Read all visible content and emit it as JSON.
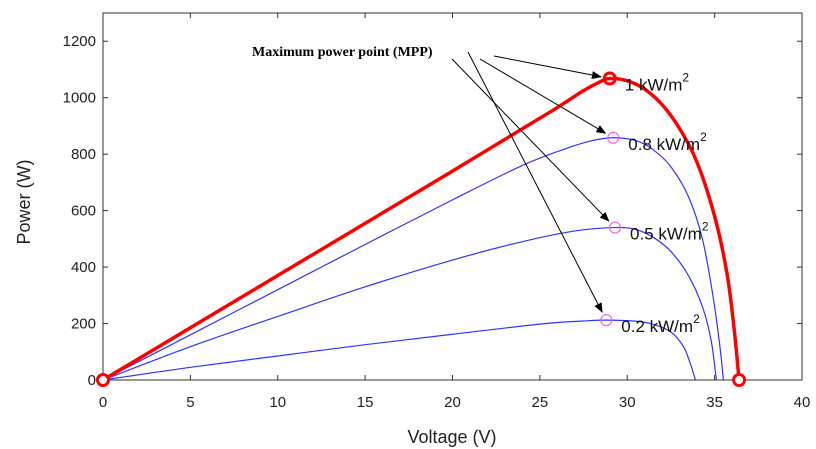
{
  "chart_data": {
    "type": "line",
    "title": "",
    "xlabel": "Voltage (V)",
    "ylabel": "Power (W)",
    "xlim": [
      0,
      40
    ],
    "ylim": [
      0,
      1300
    ],
    "xticks": [
      0,
      5,
      10,
      15,
      20,
      25,
      30,
      35,
      40
    ],
    "yticks": [
      0,
      200,
      400,
      600,
      800,
      1000,
      1200
    ],
    "xtick_labels": [
      "0",
      "5",
      "10",
      "15",
      "20",
      "25",
      "30",
      "35",
      "40"
    ],
    "ytick_labels": [
      "0",
      "200",
      "400",
      "600",
      "800",
      "1000",
      "1200"
    ],
    "grid": false,
    "annotation": {
      "text": "Maximum power point (MPP)"
    },
    "series": [
      {
        "name": "1 kW/m²",
        "label_main": "1 kW/m",
        "label_sup": "2",
        "color": "#ff0000",
        "emphasis": true,
        "mpp": [
          29,
          1068
        ],
        "points": [
          [
            0,
            0
          ],
          [
            5,
            185
          ],
          [
            10,
            370
          ],
          [
            15,
            555
          ],
          [
            20,
            740
          ],
          [
            24,
            890
          ],
          [
            26,
            965
          ],
          [
            27.5,
            1025
          ],
          [
            28.5,
            1058
          ],
          [
            29,
            1068
          ],
          [
            30,
            1060
          ],
          [
            31,
            1030
          ],
          [
            32,
            975
          ],
          [
            33,
            890
          ],
          [
            34,
            770
          ],
          [
            35,
            580
          ],
          [
            35.7,
            380
          ],
          [
            36.1,
            190
          ],
          [
            36.4,
            0
          ]
        ]
      },
      {
        "name": "0.8 kW/m²",
        "label_main": "0.8 kW/m",
        "label_sup": "2",
        "color": "#3333ff",
        "emphasis": false,
        "mpp": [
          29.2,
          858
        ],
        "points": [
          [
            0,
            0
          ],
          [
            5,
            160
          ],
          [
            10,
            320
          ],
          [
            15,
            480
          ],
          [
            20,
            638
          ],
          [
            24,
            760
          ],
          [
            26.5,
            820
          ],
          [
            28,
            848
          ],
          [
            29.2,
            858
          ],
          [
            30.5,
            848
          ],
          [
            31.5,
            815
          ],
          [
            32.5,
            755
          ],
          [
            33.5,
            650
          ],
          [
            34.3,
            500
          ],
          [
            34.9,
            300
          ],
          [
            35.3,
            120
          ],
          [
            35.5,
            0
          ]
        ]
      },
      {
        "name": "0.5 kW/m²",
        "label_main": "0.5 kW/m",
        "label_sup": "2",
        "color": "#3333ff",
        "emphasis": false,
        "mpp": [
          29.3,
          540
        ],
        "points": [
          [
            0,
            0
          ],
          [
            5,
            118
          ],
          [
            10,
            225
          ],
          [
            15,
            330
          ],
          [
            20,
            425
          ],
          [
            24,
            490
          ],
          [
            27,
            528
          ],
          [
            29.3,
            540
          ],
          [
            30.5,
            533
          ],
          [
            31.5,
            505
          ],
          [
            32.5,
            455
          ],
          [
            33.5,
            370
          ],
          [
            34.3,
            260
          ],
          [
            34.8,
            140
          ],
          [
            35.1,
            0
          ]
        ]
      },
      {
        "name": "0.2 kW/m²",
        "label_main": "0.2 kW/m",
        "label_sup": "2",
        "color": "#3333ff",
        "emphasis": false,
        "mpp": [
          28.8,
          212
        ],
        "points": [
          [
            0,
            0
          ],
          [
            5,
            45
          ],
          [
            10,
            85
          ],
          [
            15,
            125
          ],
          [
            20,
            162
          ],
          [
            25,
            198
          ],
          [
            27.5,
            209
          ],
          [
            28.8,
            212
          ],
          [
            30.5,
            208
          ],
          [
            31.5,
            197
          ],
          [
            32.5,
            170
          ],
          [
            33.2,
            120
          ],
          [
            33.6,
            60
          ],
          [
            33.9,
            0
          ]
        ]
      }
    ],
    "endpoint_markers": [
      [
        0,
        0
      ],
      [
        36.4,
        0
      ]
    ]
  }
}
